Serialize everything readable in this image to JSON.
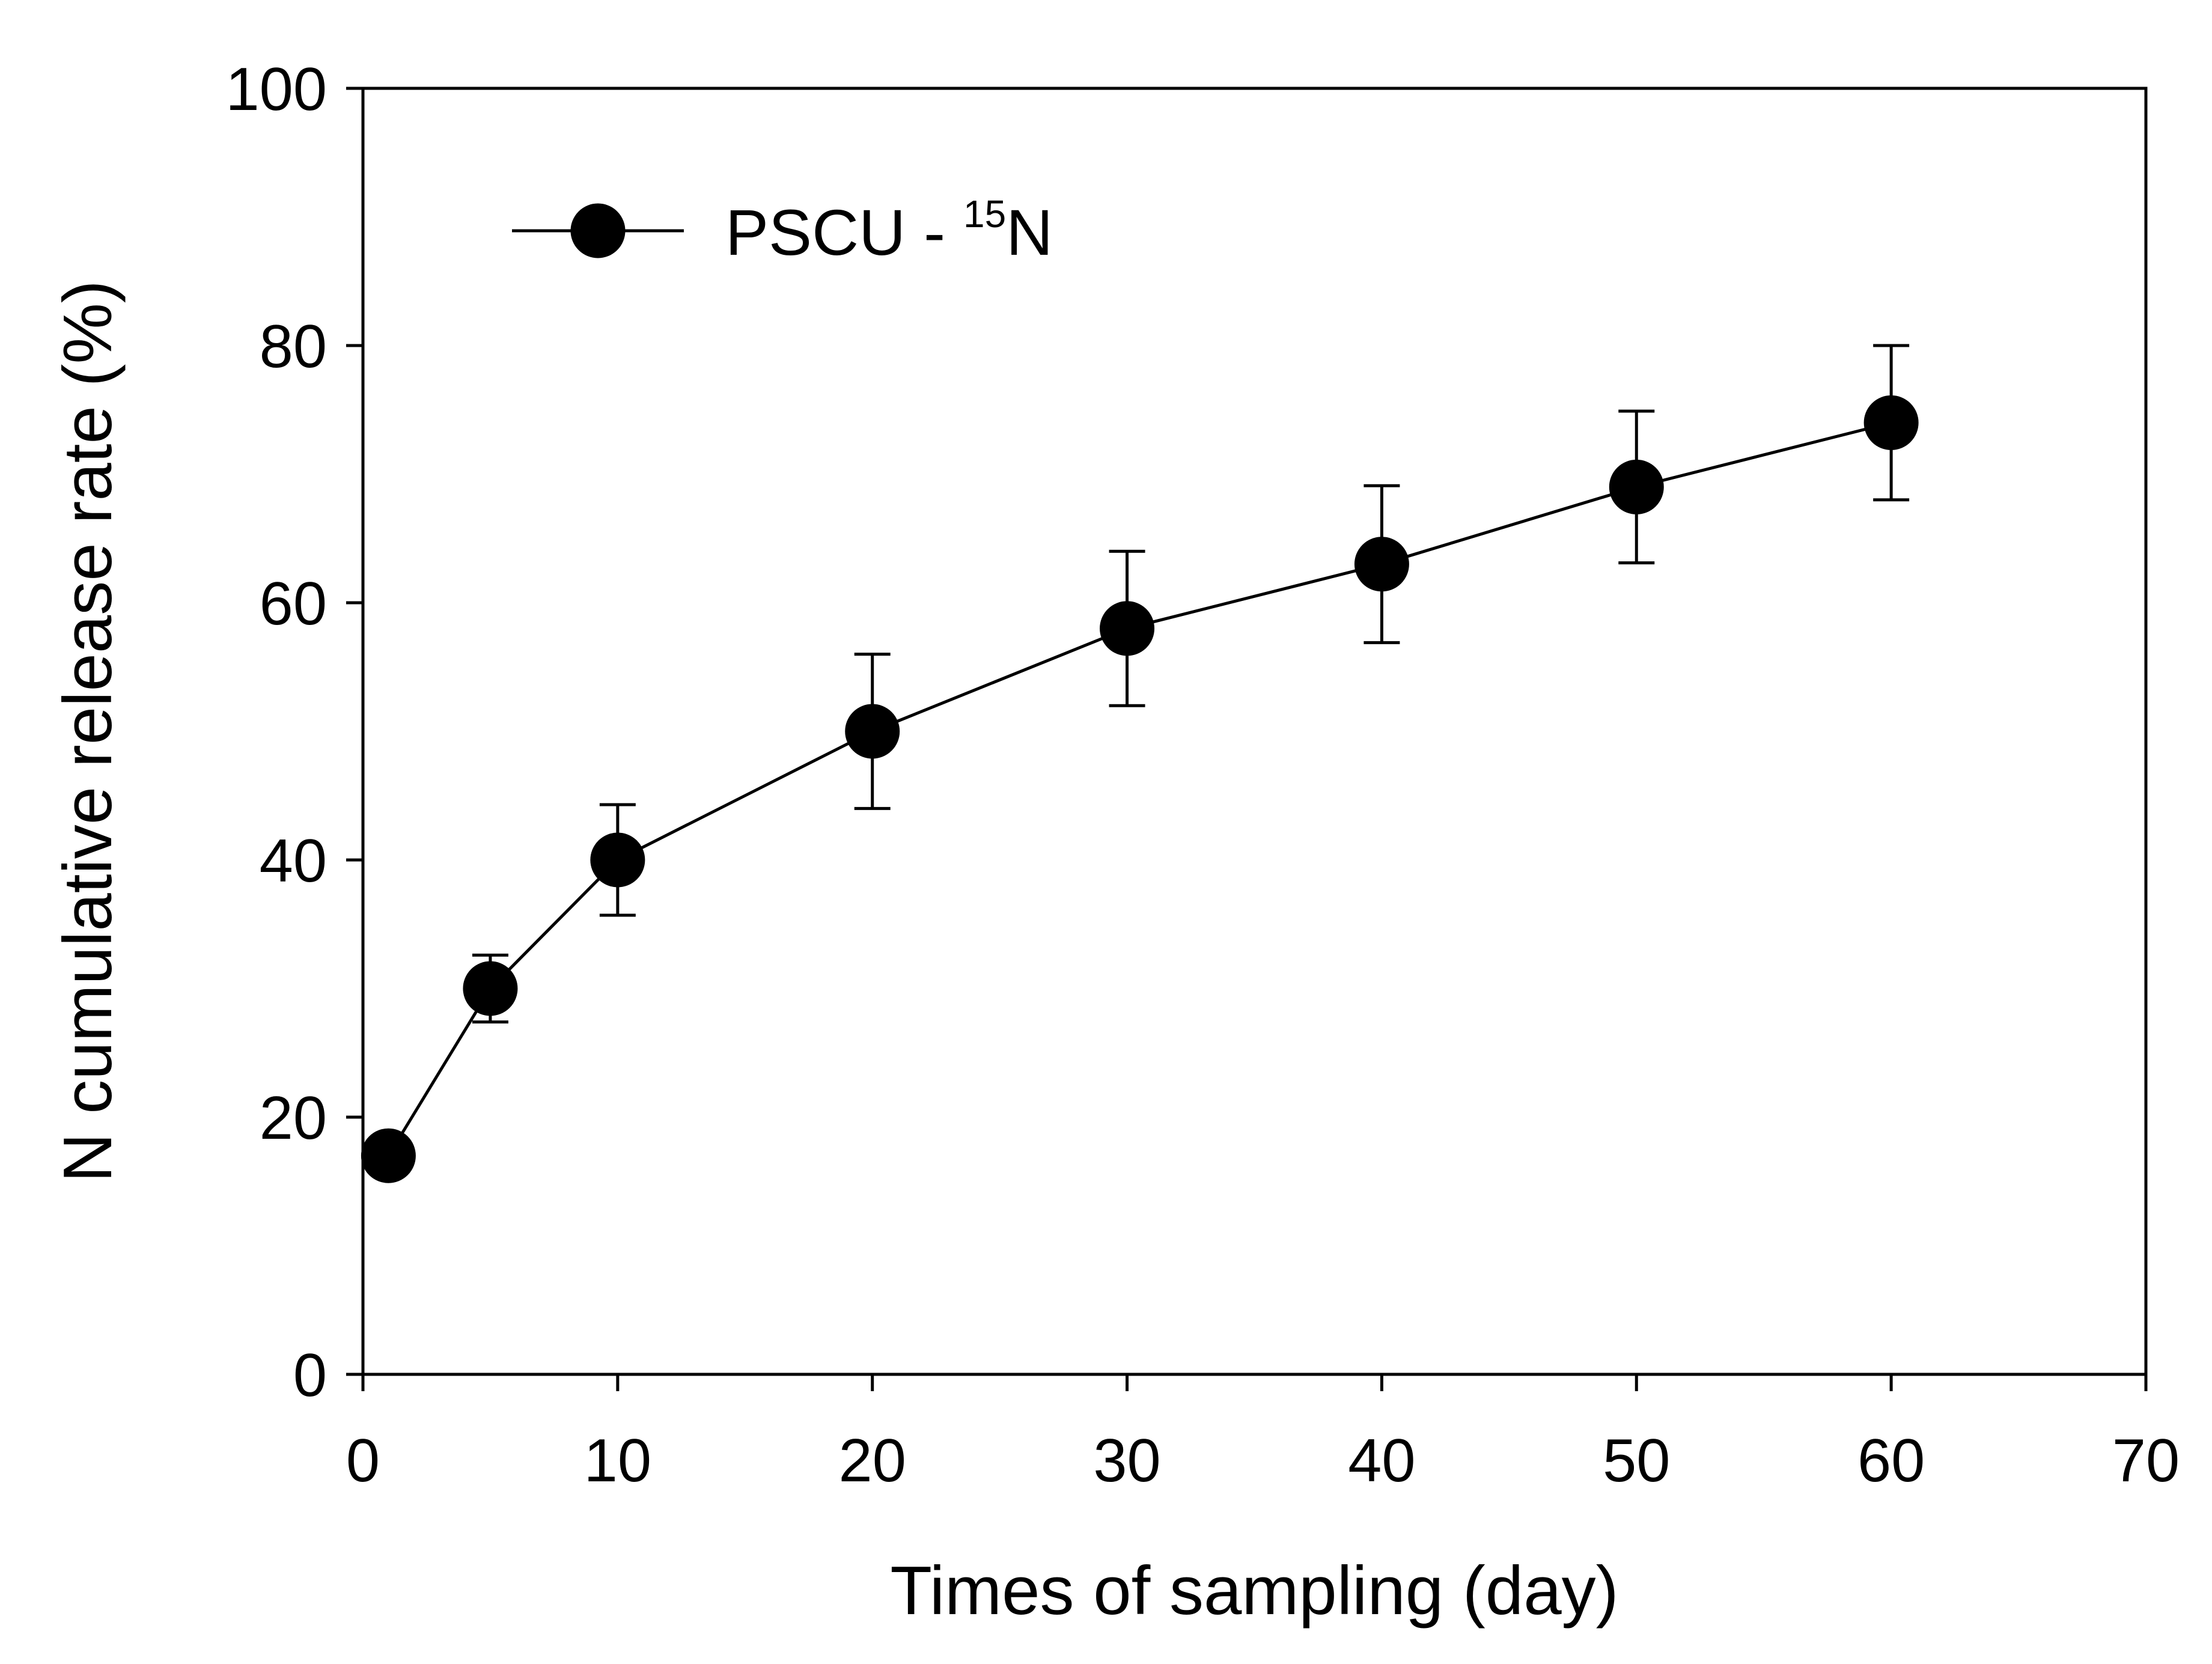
{
  "chart_data": {
    "type": "line",
    "title": "",
    "xlabel": "Times of sampling (day)",
    "ylabel": "N cumulative release rate (%)",
    "xlim": [
      0,
      70
    ],
    "ylim": [
      0,
      100
    ],
    "x_ticks": [
      0,
      10,
      20,
      30,
      40,
      50,
      60,
      70
    ],
    "y_ticks": [
      0,
      20,
      40,
      60,
      80,
      100
    ],
    "grid": false,
    "legend_position": "top-left",
    "colors": {
      "line": "#000000",
      "marker": "#000000"
    },
    "series": [
      {
        "name": "PSCU - 15N",
        "legend_label_main": "PSCU - ",
        "legend_label_sup": "15",
        "legend_label_end": "N",
        "x": [
          1,
          5,
          10,
          20,
          30,
          40,
          50,
          60
        ],
        "y": [
          17,
          30,
          40,
          50,
          58,
          63,
          69,
          74
        ],
        "error": [
          0,
          2.6,
          4.3,
          6,
          6,
          6.1,
          5.9,
          6
        ]
      }
    ]
  }
}
